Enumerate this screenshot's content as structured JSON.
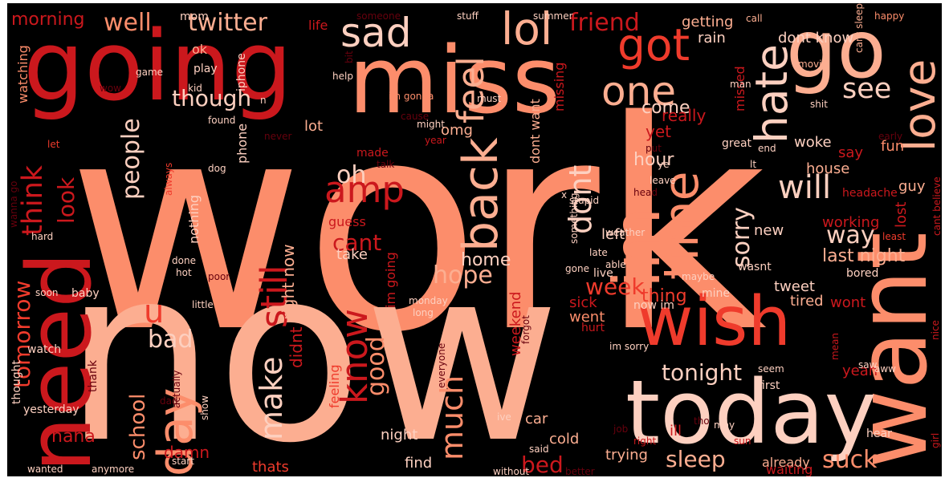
{
  "colors": {
    "background": "#000000",
    "frame": "#ffffff",
    "palette": [
      "#fc8d6b",
      "#fcae91",
      "#fdd0c0",
      "#cb181d",
      "#ef3b2c",
      "#a50f15",
      "#67000d",
      "#fb6a4a"
    ]
  },
  "words": [
    {
      "t": "work"
    },
    {
      "t": "now"
    },
    {
      "t": "going"
    },
    {
      "t": "miss"
    },
    {
      "t": "go"
    },
    {
      "t": "want"
    },
    {
      "t": "today"
    },
    {
      "t": "wish"
    },
    {
      "t": "need"
    },
    {
      "t": "im"
    },
    {
      "t": "time"
    },
    {
      "t": "back"
    },
    {
      "t": "day"
    },
    {
      "t": "love"
    },
    {
      "t": "hate"
    },
    {
      "t": "lol"
    },
    {
      "t": "got"
    },
    {
      "t": "sad"
    },
    {
      "t": "one"
    },
    {
      "t": "feel"
    },
    {
      "t": "amp"
    },
    {
      "t": "dont"
    },
    {
      "t": "still"
    },
    {
      "t": "know"
    },
    {
      "t": "u"
    },
    {
      "t": "will"
    },
    {
      "t": "much"
    },
    {
      "t": "make"
    },
    {
      "t": "think"
    },
    {
      "t": "well"
    },
    {
      "t": "twitter"
    },
    {
      "t": "friend"
    },
    {
      "t": "morning"
    },
    {
      "t": "see"
    },
    {
      "t": "though"
    },
    {
      "t": "oh"
    },
    {
      "t": "cant"
    },
    {
      "t": "hope"
    },
    {
      "t": "sorry"
    },
    {
      "t": "people"
    },
    {
      "t": "look"
    },
    {
      "t": "tomorrow"
    },
    {
      "t": "good"
    },
    {
      "t": "bad"
    },
    {
      "t": "tonight"
    },
    {
      "t": "suck"
    },
    {
      "t": "sleep"
    },
    {
      "t": "week"
    },
    {
      "t": "school"
    },
    {
      "t": "home"
    },
    {
      "t": "way"
    },
    {
      "t": "hour"
    },
    {
      "t": "bed"
    },
    {
      "t": "right now"
    },
    {
      "t": "didnt"
    },
    {
      "t": "thing"
    },
    {
      "t": "come"
    },
    {
      "t": "really"
    },
    {
      "t": "yet"
    },
    {
      "t": "last night"
    },
    {
      "t": "getting"
    },
    {
      "t": "dont know"
    },
    {
      "t": "rain"
    },
    {
      "t": "missing"
    },
    {
      "t": "missed"
    },
    {
      "t": "woke"
    },
    {
      "t": "house"
    },
    {
      "t": "say"
    },
    {
      "t": "fun"
    },
    {
      "t": "guy"
    },
    {
      "t": "working"
    },
    {
      "t": "lost"
    },
    {
      "t": "new"
    },
    {
      "t": "tweet"
    },
    {
      "t": "tired"
    },
    {
      "t": "wont"
    },
    {
      "t": "yeah"
    },
    {
      "t": "night"
    },
    {
      "t": "haha"
    },
    {
      "t": "damn"
    },
    {
      "t": "thats"
    },
    {
      "t": "find"
    },
    {
      "t": "trying"
    },
    {
      "t": "already"
    },
    {
      "t": "waiting"
    },
    {
      "t": "ill"
    },
    {
      "t": "cold"
    },
    {
      "t": "car"
    },
    {
      "t": "sick"
    },
    {
      "t": "went"
    },
    {
      "t": "feeling"
    },
    {
      "t": "weekend"
    },
    {
      "t": "left"
    },
    {
      "t": "take"
    },
    {
      "t": "omg"
    },
    {
      "t": "dont want"
    },
    {
      "t": "lot"
    },
    {
      "t": "made"
    },
    {
      "t": "im going"
    },
    {
      "t": "guess"
    },
    {
      "t": "nothing"
    },
    {
      "t": "phone"
    },
    {
      "t": "watching"
    },
    {
      "t": "ok"
    },
    {
      "t": "play"
    },
    {
      "t": "kid"
    },
    {
      "t": "iphone"
    },
    {
      "t": "life"
    },
    {
      "t": "mom"
    },
    {
      "t": "someone"
    },
    {
      "t": "stuff"
    },
    {
      "t": "summer"
    },
    {
      "t": "call"
    },
    {
      "t": "happy"
    },
    {
      "t": "movie"
    },
    {
      "t": "cant sleep"
    },
    {
      "t": "man"
    },
    {
      "t": "shit"
    },
    {
      "t": "early"
    },
    {
      "t": "great"
    },
    {
      "t": "headache"
    },
    {
      "t": "cant believe"
    },
    {
      "t": "least"
    },
    {
      "t": "wasnt"
    },
    {
      "t": "bored"
    },
    {
      "t": "live"
    },
    {
      "t": "gone"
    },
    {
      "t": "maybe"
    },
    {
      "t": "mine"
    },
    {
      "t": "now im"
    },
    {
      "t": "hurt"
    },
    {
      "t": "forgot"
    },
    {
      "t": "im sorry"
    },
    {
      "t": "saw"
    },
    {
      "t": "aww"
    },
    {
      "t": "nice"
    },
    {
      "t": "first"
    },
    {
      "t": "seem"
    },
    {
      "t": "mean"
    },
    {
      "t": "hear"
    },
    {
      "t": "sun"
    },
    {
      "t": "right"
    },
    {
      "t": "job"
    },
    {
      "t": "said"
    },
    {
      "t": "without"
    },
    {
      "t": "better"
    },
    {
      "t": "start"
    },
    {
      "t": "show"
    },
    {
      "t": "wanted"
    },
    {
      "t": "anymore"
    },
    {
      "t": "thought"
    },
    {
      "t": "yesterday"
    },
    {
      "t": "thank"
    },
    {
      "t": "watch"
    },
    {
      "t": "dad"
    },
    {
      "t": "little"
    },
    {
      "t": "baby"
    },
    {
      "t": "soon"
    },
    {
      "t": "hot"
    },
    {
      "t": "poor"
    },
    {
      "t": "done"
    },
    {
      "t": "hard"
    },
    {
      "t": "wanna go"
    },
    {
      "t": "let"
    },
    {
      "t": "never"
    },
    {
      "t": "found"
    },
    {
      "t": "dog"
    },
    {
      "t": "talk"
    },
    {
      "t": "always"
    },
    {
      "t": "year"
    },
    {
      "t": "might"
    },
    {
      "t": "cause"
    },
    {
      "t": "im gonna"
    },
    {
      "t": "must"
    },
    {
      "t": "help"
    },
    {
      "t": "bit"
    },
    {
      "t": "game"
    },
    {
      "t": "wow"
    },
    {
      "t": "actually"
    },
    {
      "t": "everyone"
    },
    {
      "t": "long"
    },
    {
      "t": "monday"
    },
    {
      "t": "stupid"
    },
    {
      "t": "something"
    },
    {
      "t": "late"
    },
    {
      "t": "able"
    },
    {
      "t": "weather"
    },
    {
      "t": "head"
    },
    {
      "t": "end"
    },
    {
      "t": "put"
    },
    {
      "t": "leave"
    },
    {
      "t": "ye"
    },
    {
      "t": "lt"
    },
    {
      "t": "may"
    },
    {
      "t": "ive"
    },
    {
      "t": "tho"
    },
    {
      "t": "girl"
    },
    {
      "t": "x"
    },
    {
      "t": "n"
    }
  ]
}
